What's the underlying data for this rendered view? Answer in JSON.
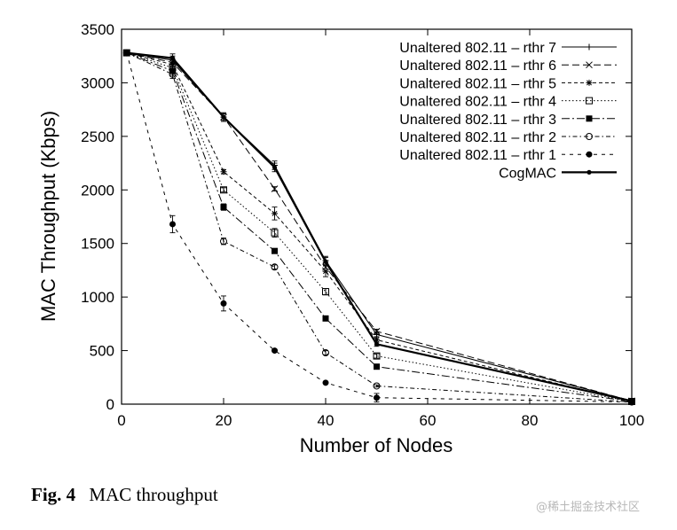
{
  "chart_data": {
    "type": "line",
    "title": "",
    "xlabel": "Number of Nodes",
    "ylabel": "MAC Throughput (Kbps)",
    "xlim": [
      0,
      100
    ],
    "ylim": [
      0,
      3500
    ],
    "xticks": [
      0,
      20,
      40,
      60,
      80,
      100
    ],
    "yticks": [
      0,
      500,
      1000,
      1500,
      2000,
      2500,
      3000,
      3500
    ],
    "grid": false,
    "legend_position": "top-right",
    "x": [
      1,
      10,
      20,
      30,
      40,
      50,
      100
    ],
    "series": [
      {
        "name": "Unaltered 802.11 – rthr 7",
        "marker": "plus",
        "dash": "solid-thin",
        "values": [
          3280,
          3210,
          2680,
          2230,
          1340,
          650,
          30
        ],
        "errors": [
          0,
          40,
          40,
          40,
          40,
          20,
          10
        ]
      },
      {
        "name": "Unaltered 802.11 – rthr 6",
        "marker": "cross",
        "dash": "dashed",
        "values": [
          3280,
          3190,
          2680,
          2010,
          1280,
          680,
          30
        ],
        "errors": [
          0,
          40,
          30,
          20,
          40,
          20,
          10
        ]
      },
      {
        "name": "Unaltered 802.11 – rthr 5",
        "marker": "asterisk",
        "dash": "dashed-short",
        "values": [
          3280,
          3170,
          2170,
          1780,
          1240,
          600,
          25
        ],
        "errors": [
          0,
          40,
          20,
          60,
          50,
          20,
          10
        ]
      },
      {
        "name": "Unaltered 802.11 – rthr 4",
        "marker": "square-open",
        "dash": "dotted",
        "values": [
          3280,
          3140,
          2000,
          1600,
          1050,
          450,
          25
        ],
        "errors": [
          0,
          40,
          20,
          40,
          30,
          20,
          10
        ]
      },
      {
        "name": "Unaltered 802.11 – rthr 3",
        "marker": "square-filled",
        "dash": "dashdot",
        "values": [
          3280,
          3110,
          1840,
          1430,
          800,
          350,
          25
        ],
        "errors": [
          0,
          40,
          30,
          20,
          20,
          10,
          10
        ]
      },
      {
        "name": "Unaltered 802.11 – rthr 2",
        "marker": "circle-open",
        "dash": "dashdot-fine",
        "values": [
          3280,
          3080,
          1520,
          1280,
          480,
          170,
          20
        ],
        "errors": [
          0,
          40,
          30,
          20,
          20,
          10,
          10
        ]
      },
      {
        "name": "Unaltered 802.11 – rthr 1",
        "marker": "circle-filled",
        "dash": "dashed-sparse",
        "values": [
          3280,
          1680,
          940,
          500,
          200,
          60,
          20
        ],
        "errors": [
          0,
          80,
          70,
          10,
          10,
          40,
          10
        ]
      },
      {
        "name": "CogMAC",
        "marker": "dot",
        "dash": "solid-thick",
        "values": [
          3280,
          3230,
          2680,
          2210,
          1330,
          560,
          30
        ],
        "errors": [
          0,
          40,
          40,
          40,
          40,
          20,
          10
        ]
      }
    ]
  },
  "caption": {
    "label": "Fig. 4",
    "text": "MAC throughput"
  },
  "watermark": "@稀土掘金技术社区"
}
